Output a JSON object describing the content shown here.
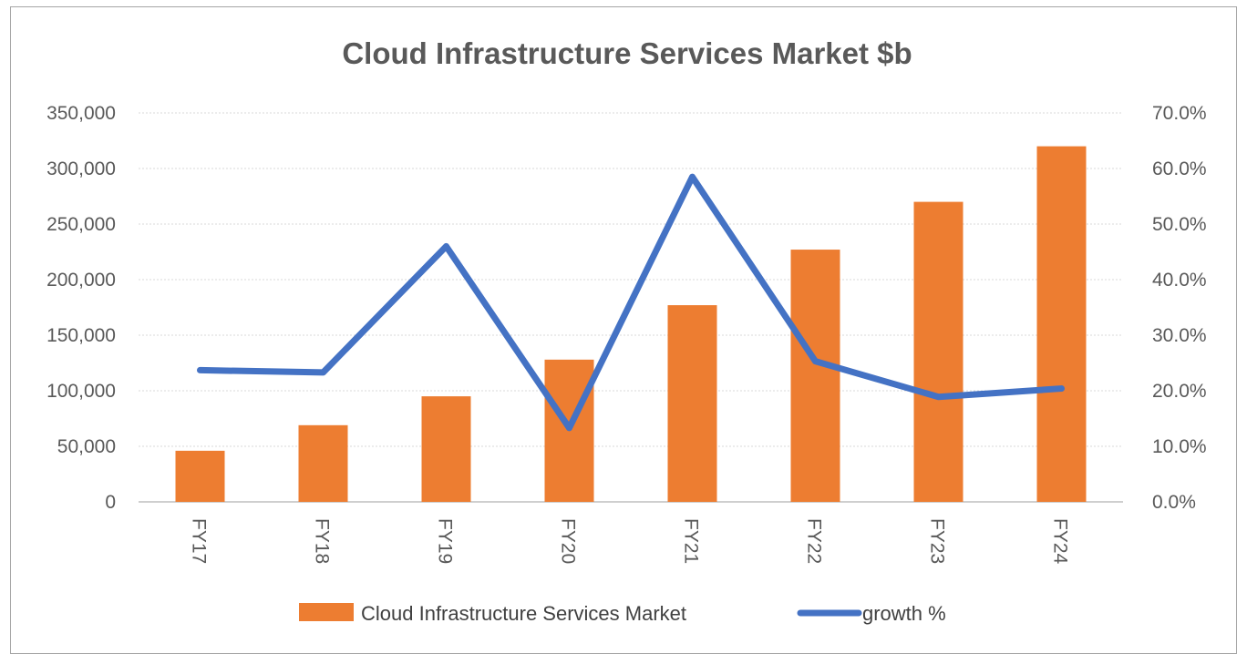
{
  "chart_data": {
    "type": "bar",
    "title": "Cloud Infrastructure Services Market $b",
    "categories": [
      "FY17",
      "FY18",
      "FY19",
      "FY20",
      "FY21",
      "FY22",
      "FY23",
      "FY24"
    ],
    "series": [
      {
        "name": "Cloud Infrastructure Services Market",
        "type": "bar",
        "axis": "left",
        "color": "#ED7D31",
        "values": [
          46000,
          69000,
          95000,
          128000,
          177000,
          227000,
          270000,
          320000
        ]
      },
      {
        "name": "growth %",
        "type": "line",
        "axis": "right",
        "color": "#4472C4",
        "values": [
          23.7,
          23.3,
          46.0,
          13.3,
          58.5,
          25.3,
          18.9,
          20.4
        ]
      }
    ],
    "y_left": {
      "min": 0,
      "max": 350000,
      "ticks": [
        "0",
        "50,000",
        "100,000",
        "150,000",
        "200,000",
        "250,000",
        "300,000",
        "350,000"
      ]
    },
    "y_right": {
      "min": 0,
      "max": 70,
      "ticks": [
        "0.0%",
        "10.0%",
        "20.0%",
        "30.0%",
        "40.0%",
        "50.0%",
        "60.0%",
        "70.0%"
      ]
    },
    "grid": true,
    "legend": "bottom",
    "xlabel": "",
    "ylabel": ""
  }
}
